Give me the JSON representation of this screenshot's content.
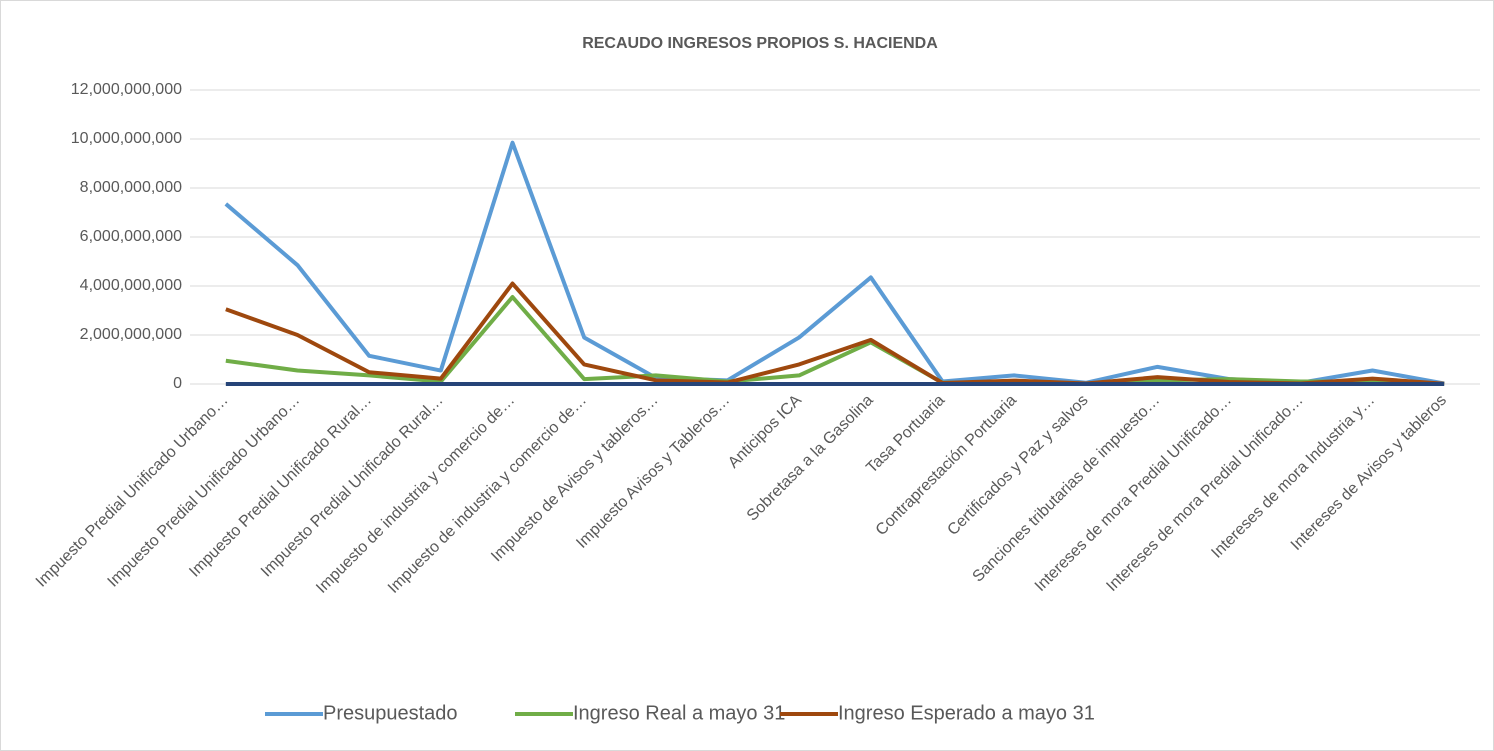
{
  "chart_data": {
    "type": "line",
    "title": "RECAUDO INGRESOS PROPIOS S. HACIENDA",
    "categories": [
      "Impuesto Predial Unificado Urbano…",
      "Impuesto Predial Unificado  Urbano…",
      "Impuesto Predial Unificado Rural…",
      "Impuesto Predial Unificado Rural…",
      "Impuesto de industria y comercio de…",
      "Impuesto de industria y comercio de…",
      "Impuesto de Avisos y tableros…",
      "Impuesto Avisos y Tableros…",
      "Anticipos ICA",
      "Sobretasa a la Gasolina",
      "Tasa Portuaria",
      "Contraprestación Portuaria",
      "Certificados y Paz y salvos",
      "Sanciones tributarias de impuesto…",
      "Intereses  de mora Predial Unificado…",
      "Intereses  de mora Predial Unificado…",
      "Intereses de mora Industria y…",
      "Intereses de Avisos y tableros"
    ],
    "series": [
      {
        "name": "Presupuestado",
        "color": "#5b9bd5",
        "values": [
          7350000000,
          4850000000,
          1150000000,
          550000000,
          9850000000,
          1900000000,
          250000000,
          150000000,
          1900000000,
          4350000000,
          100000000,
          350000000,
          50000000,
          700000000,
          200000000,
          50000000,
          550000000,
          20000000
        ]
      },
      {
        "name": "Ingreso Real a mayo 31",
        "color": "#70ad47",
        "values": [
          950000000,
          550000000,
          350000000,
          100000000,
          3550000000,
          200000000,
          350000000,
          100000000,
          350000000,
          1700000000,
          50000000,
          50000000,
          20000000,
          150000000,
          200000000,
          100000000,
          100000000,
          10000000
        ]
      },
      {
        "name": "Ingreso Esperado a mayo 31",
        "color": "#9e480e",
        "values": [
          3050000000,
          2000000000,
          480000000,
          220000000,
          4100000000,
          800000000,
          150000000,
          60000000,
          800000000,
          1800000000,
          40000000,
          140000000,
          20000000,
          280000000,
          80000000,
          20000000,
          220000000,
          10000000
        ]
      },
      {
        "color": "#264478",
        "values": [
          0,
          0,
          0,
          0,
          0,
          0,
          0,
          0,
          0,
          0,
          0,
          0,
          0,
          0,
          0,
          0,
          0,
          0
        ]
      }
    ],
    "ylim": [
      0,
      12000000000
    ],
    "yticks": [
      0,
      {
        "value": 2000000000,
        "label": "2,000,000,000"
      },
      {
        "value": 4000000000,
        "label": "4,000,000,000"
      },
      {
        "value": 6000000000,
        "label": "6,000,000,000"
      },
      {
        "value": 8000000000,
        "label": "8,000,000,000"
      },
      {
        "value": 10000000000,
        "label": "10,000,000,000"
      },
      {
        "value": 12000000000,
        "label": "12,000,000,000"
      }
    ],
    "grid": true,
    "legend": "bottom"
  }
}
